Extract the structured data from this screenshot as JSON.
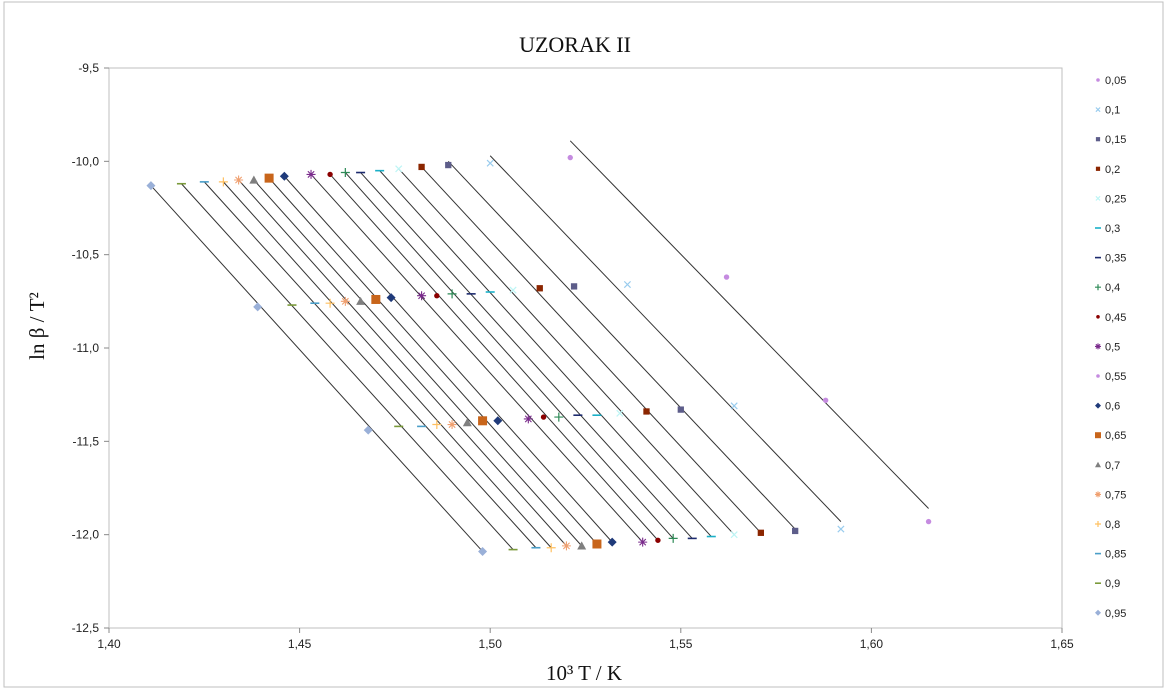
{
  "chart_data": {
    "type": "scatter",
    "title": "UZORAK II",
    "xlabel": "10³ T / K",
    "ylabel": "ln β / T²",
    "xlim": [
      1.4,
      1.65
    ],
    "ylim": [
      -12.5,
      -9.5
    ],
    "x_ticks": [
      "1,40",
      "1,45",
      "1,50",
      "1,55",
      "1,60",
      "1,65"
    ],
    "y_ticks": [
      "-9,5",
      "-10,0",
      "-10,5",
      "-11,0",
      "-11,5",
      "-12,0",
      "-12,5"
    ],
    "x_tick_values": [
      1.4,
      1.45,
      1.5,
      1.55,
      1.6,
      1.65
    ],
    "y_tick_values": [
      -9.5,
      -10.0,
      -10.5,
      -11.0,
      -11.5,
      -12.0,
      -12.5
    ],
    "legend_position": "right",
    "grid": false,
    "series": [
      {
        "name": "0,05",
        "color": "#c58be0",
        "marker": "circle",
        "x": [
          1.521,
          1.562,
          1.588,
          1.615
        ],
        "y": [
          -9.98,
          -10.62,
          -11.28,
          -11.93
        ],
        "fit": [
          [
            1.521,
            -9.89
          ],
          [
            1.615,
            -11.86
          ]
        ]
      },
      {
        "name": "0,1",
        "color": "#99ccee",
        "marker": "x",
        "x": [
          1.5,
          1.536,
          1.564,
          1.592
        ],
        "y": [
          -10.01,
          -10.66,
          -11.31,
          -11.97
        ],
        "fit": [
          [
            1.5,
            -9.97
          ],
          [
            1.592,
            -11.93
          ]
        ]
      },
      {
        "name": "0,15",
        "color": "#5d5d8a",
        "marker": "square-sm",
        "x": [
          1.489,
          1.522,
          1.55,
          1.58
        ],
        "y": [
          -10.02,
          -10.67,
          -11.33,
          -11.98
        ],
        "fit": [
          [
            1.489,
            -10.0
          ],
          [
            1.58,
            -11.97
          ]
        ]
      },
      {
        "name": "0,2",
        "color": "#8b2500",
        "marker": "square-sm",
        "x": [
          1.482,
          1.513,
          1.541,
          1.571
        ],
        "y": [
          -10.03,
          -10.68,
          -11.34,
          -11.99
        ],
        "fit": [
          [
            1.482,
            -10.03
          ],
          [
            1.571,
            -11.99
          ]
        ]
      },
      {
        "name": "0,25",
        "color": "#bdf5f5",
        "marker": "x",
        "x": [
          1.476,
          1.506,
          1.534,
          1.564
        ],
        "y": [
          -10.04,
          -10.69,
          -11.35,
          -12.0
        ],
        "fit": [
          [
            1.476,
            -10.04
          ],
          [
            1.564,
            -12.0
          ]
        ]
      },
      {
        "name": "0,3",
        "color": "#1ab0c8",
        "marker": "dash",
        "x": [
          1.471,
          1.5,
          1.528,
          1.558
        ],
        "y": [
          -10.05,
          -10.7,
          -11.36,
          -12.01
        ],
        "fit": [
          [
            1.471,
            -10.05
          ],
          [
            1.558,
            -12.01
          ]
        ]
      },
      {
        "name": "0,35",
        "color": "#1c2a6e",
        "marker": "dash",
        "x": [
          1.466,
          1.495,
          1.523,
          1.553
        ],
        "y": [
          -10.06,
          -10.71,
          -11.36,
          -12.02
        ],
        "fit": [
          [
            1.466,
            -10.06
          ],
          [
            1.553,
            -12.02
          ]
        ]
      },
      {
        "name": "0,4",
        "color": "#2e8b57",
        "marker": "plus",
        "x": [
          1.462,
          1.49,
          1.518,
          1.548
        ],
        "y": [
          -10.06,
          -10.71,
          -11.37,
          -12.02
        ],
        "fit": [
          [
            1.462,
            -10.06
          ],
          [
            1.548,
            -12.02
          ]
        ]
      },
      {
        "name": "0,45",
        "color": "#8b0000",
        "marker": "circle",
        "x": [
          1.458,
          1.486,
          1.514,
          1.544
        ],
        "y": [
          -10.07,
          -10.72,
          -11.37,
          -12.03
        ],
        "fit": [
          [
            1.458,
            -10.07
          ],
          [
            1.544,
            -12.03
          ]
        ]
      },
      {
        "name": "0,5",
        "color": "#7a2b8c",
        "marker": "star",
        "x": [
          1.453,
          1.482,
          1.51,
          1.54
        ],
        "y": [
          -10.07,
          -10.72,
          -11.38,
          -12.04
        ],
        "fit": [
          [
            1.453,
            -10.07
          ],
          [
            1.54,
            -12.04
          ]
        ]
      },
      {
        "name": "0,55",
        "color": "#c58be0",
        "marker": "circle",
        "x": [],
        "y": []
      },
      {
        "name": "0,6",
        "color": "#1f3a7a",
        "marker": "diamond",
        "x": [
          1.446,
          1.474,
          1.502,
          1.532
        ],
        "y": [
          -10.08,
          -10.73,
          -11.39,
          -12.04
        ],
        "fit": [
          [
            1.446,
            -10.08
          ],
          [
            1.532,
            -12.04
          ]
        ]
      },
      {
        "name": "0,65",
        "color": "#c8651b",
        "marker": "square",
        "x": [
          1.442,
          1.47,
          1.498,
          1.528
        ],
        "y": [
          -10.09,
          -10.74,
          -11.39,
          -12.05
        ],
        "fit": [
          [
            1.442,
            -10.09
          ],
          [
            1.528,
            -12.05
          ]
        ]
      },
      {
        "name": "0,7",
        "color": "#7f7f7f",
        "marker": "triangle",
        "x": [
          1.438,
          1.466,
          1.494,
          1.524
        ],
        "y": [
          -10.1,
          -10.75,
          -11.4,
          -12.06
        ],
        "fit": [
          [
            1.438,
            -10.1
          ],
          [
            1.524,
            -12.06
          ]
        ]
      },
      {
        "name": "0,75",
        "color": "#f0a070",
        "marker": "star",
        "x": [
          1.434,
          1.462,
          1.49,
          1.52
        ],
        "y": [
          -10.1,
          -10.75,
          -11.41,
          -12.06
        ],
        "fit": [
          [
            1.434,
            -10.1
          ],
          [
            1.52,
            -12.06
          ]
        ]
      },
      {
        "name": "0,8",
        "color": "#ffc060",
        "marker": "plus",
        "x": [
          1.43,
          1.458,
          1.486,
          1.516
        ],
        "y": [
          -10.11,
          -10.76,
          -11.41,
          -12.07
        ],
        "fit": [
          [
            1.43,
            -10.11
          ],
          [
            1.516,
            -12.07
          ]
        ]
      },
      {
        "name": "0,85",
        "color": "#4a9ec8",
        "marker": "dash",
        "x": [
          1.425,
          1.454,
          1.482,
          1.512
        ],
        "y": [
          -10.11,
          -10.76,
          -11.42,
          -12.07
        ],
        "fit": [
          [
            1.425,
            -10.11
          ],
          [
            1.512,
            -12.07
          ]
        ]
      },
      {
        "name": "0,9",
        "color": "#7a9a3a",
        "marker": "dash",
        "x": [
          1.419,
          1.448,
          1.476,
          1.506
        ],
        "y": [
          -10.12,
          -10.77,
          -11.42,
          -12.08
        ],
        "fit": [
          [
            1.419,
            -10.12
          ],
          [
            1.506,
            -12.08
          ]
        ]
      },
      {
        "name": "0,95",
        "color": "#9ab0d8",
        "marker": "diamond",
        "x": [
          1.411,
          1.439,
          1.468,
          1.498
        ],
        "y": [
          -10.13,
          -10.78,
          -11.44,
          -12.09
        ],
        "fit": [
          [
            1.411,
            -10.13
          ],
          [
            1.498,
            -12.09
          ]
        ]
      }
    ]
  }
}
